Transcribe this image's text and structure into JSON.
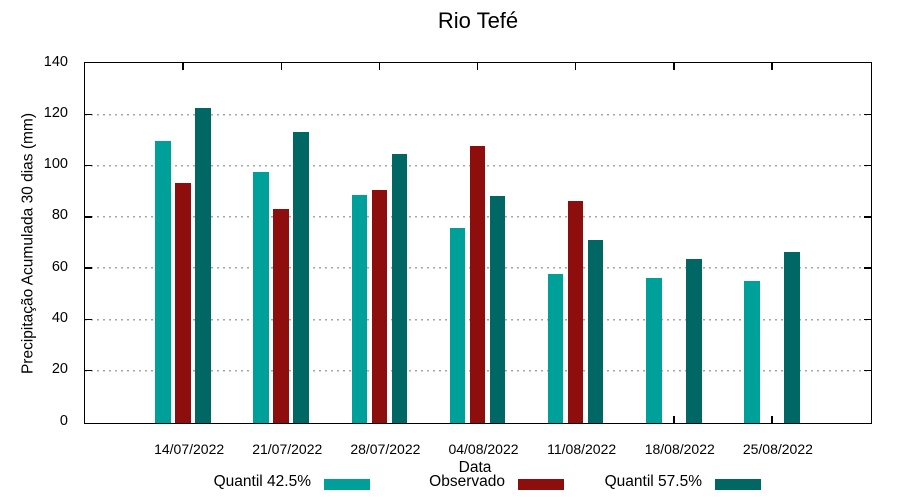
{
  "chart_data": {
    "type": "bar",
    "title": "Rio Tefé",
    "xlabel": "Data",
    "ylabel": "Precipitação Acumulada 30 dias (mm)",
    "categories": [
      "14/07/2022",
      "21/07/2022",
      "28/07/2022",
      "04/08/2022",
      "11/08/2022",
      "18/08/2022",
      "25/08/2022"
    ],
    "series": [
      {
        "name": "Quantil 42.5%",
        "color": "#00A09A",
        "values": [
          110,
          98,
          89,
          76,
          58,
          56.5,
          55.5
        ]
      },
      {
        "name": "Observado",
        "color": "#8E0D0D",
        "values": [
          93.5,
          83.5,
          91,
          108,
          86.5,
          null,
          null
        ]
      },
      {
        "name": "Quantil 57.5%",
        "color": "#016764",
        "values": [
          123,
          113.5,
          105,
          88.5,
          71.5,
          64,
          66.5
        ]
      }
    ],
    "ylim": [
      0,
      140
    ],
    "ytick_step": 20,
    "grid": true,
    "legend_position": "bottom",
    "axis_color": "#000000",
    "grid_color": "#A6A6A6"
  }
}
